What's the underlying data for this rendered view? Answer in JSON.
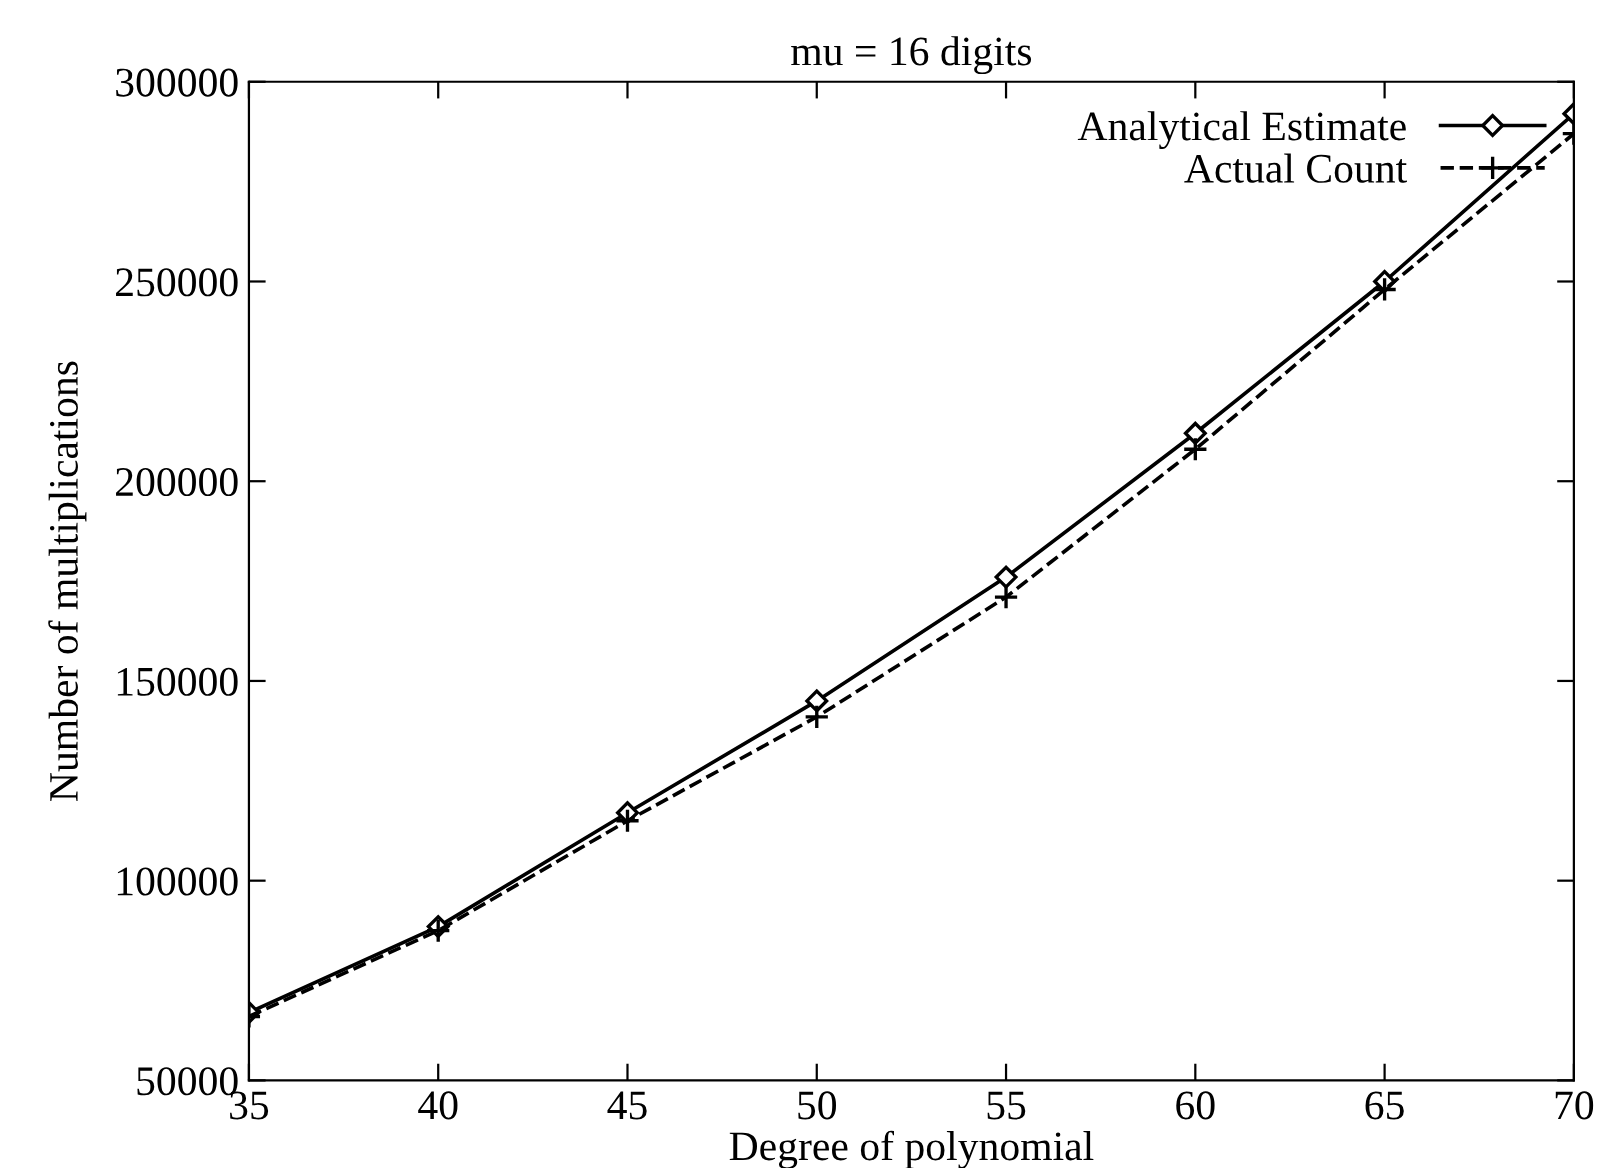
{
  "chart_data": {
    "type": "line",
    "title": "mu = 16 digits",
    "xlabel": "Degree of polynomial",
    "ylabel": "Number of multiplications",
    "x": [
      35,
      40,
      45,
      50,
      55,
      60,
      65,
      70
    ],
    "series": [
      {
        "name": "Analytical Estimate",
        "color": "#000000",
        "marker": "diamond",
        "line_style": "solid",
        "values": [
          67000,
          88500,
          117000,
          145000,
          176000,
          212000,
          250000,
          292000
        ]
      },
      {
        "name": "Actual Count",
        "color": "#000000",
        "marker": "cross",
        "line_style": "dashed",
        "values": [
          66000,
          87500,
          115000,
          141000,
          171000,
          208000,
          248000,
          287000
        ]
      }
    ],
    "xlim": [
      35,
      70
    ],
    "xticks": [
      35,
      40,
      45,
      50,
      55,
      60,
      65,
      70
    ],
    "ylim": [
      50000,
      300000
    ],
    "yticks": [
      50000,
      100000,
      150000,
      200000,
      250000,
      300000
    ],
    "grid": false,
    "legend": "top right"
  }
}
